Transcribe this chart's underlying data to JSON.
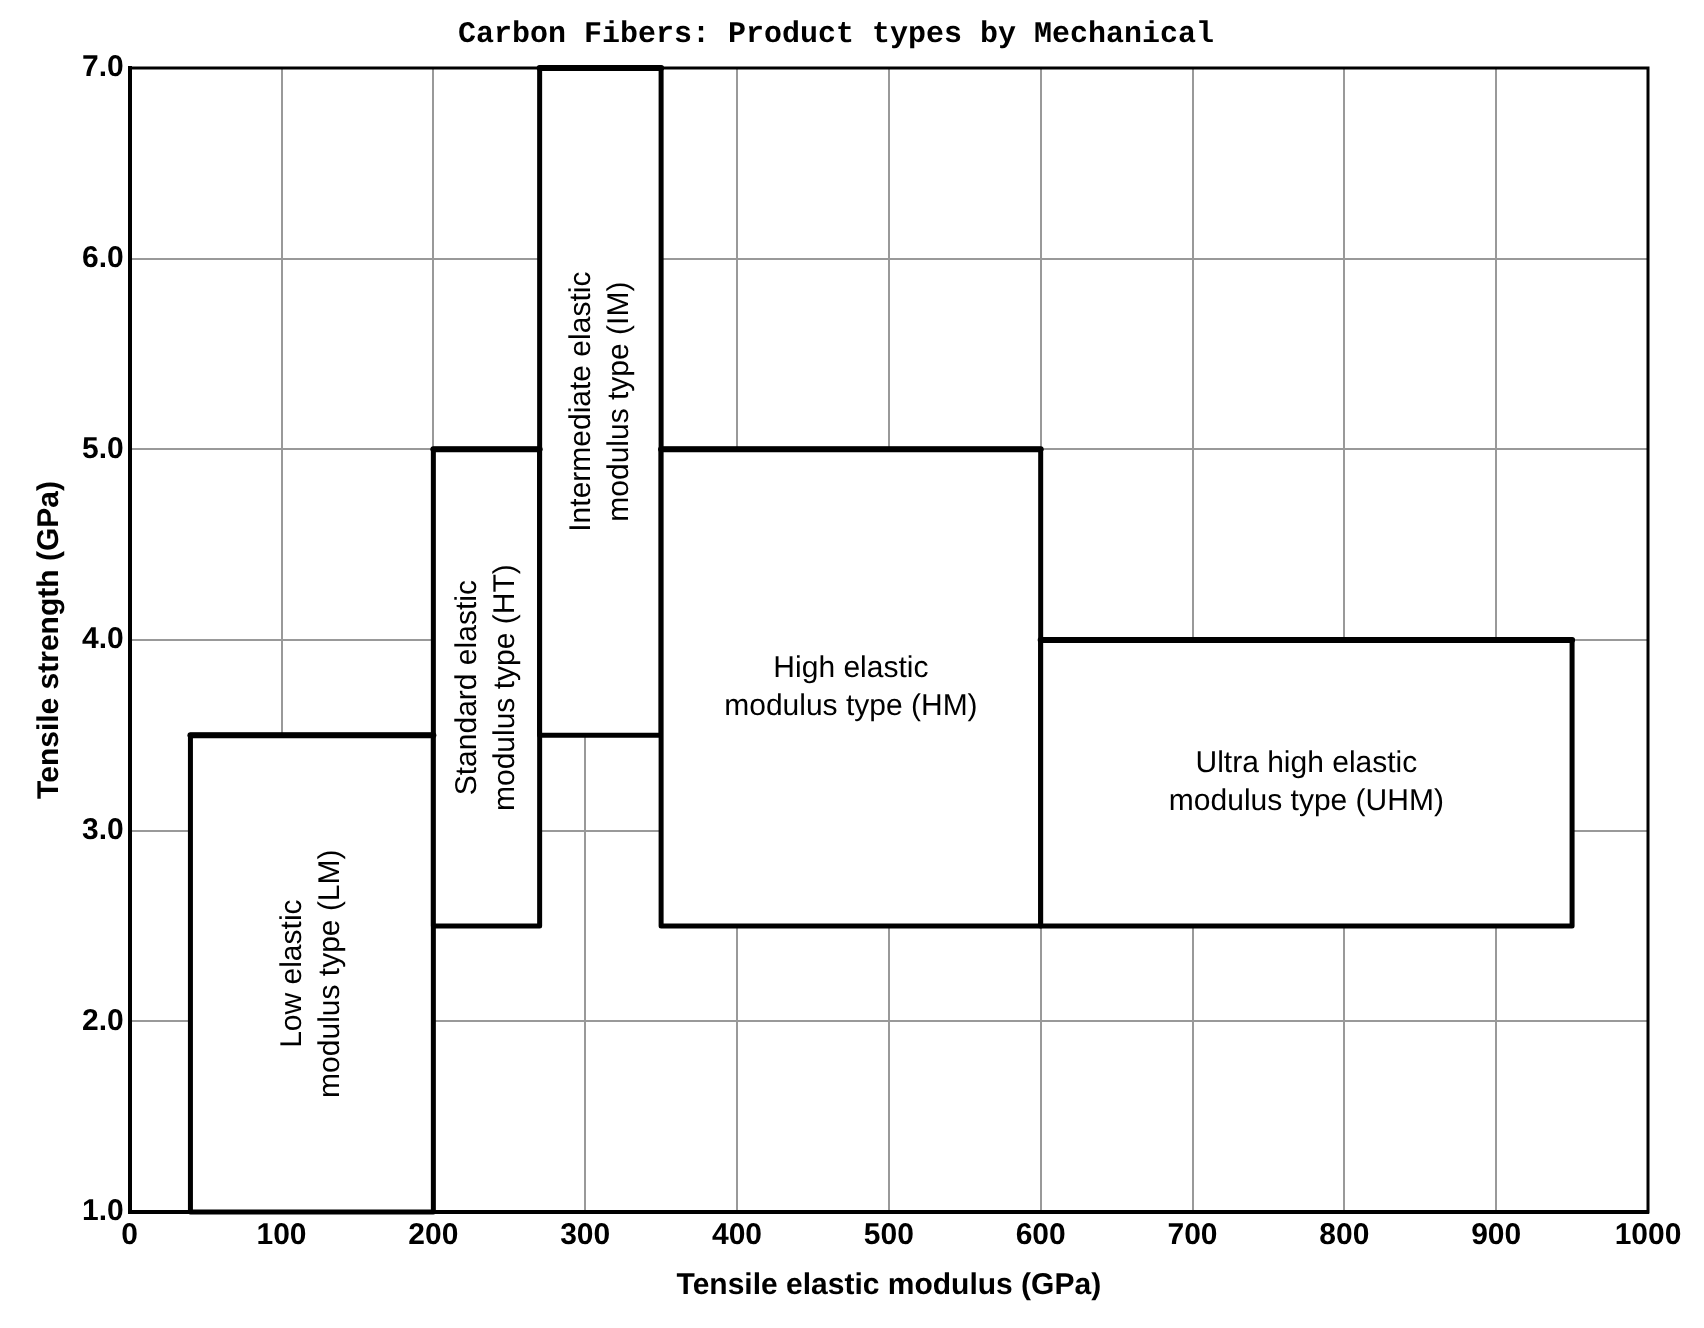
{
  "chart_data": {
    "type": "line",
    "title": "Carbon Fibers: Product types by Mechanical",
    "xlabel": "Tensile elastic modulus (GPa)",
    "ylabel": "Tensile strength (GPa)",
    "series": [
      {
        "color": "#000000",
        "x": [
          40,
          200
        ],
        "values": [
          3.5,
          3.5
        ],
        "lower": [
          1.0,
          1.0
        ],
        "upper": [
          3.5,
          3.5
        ]
      },
      {
        "color": "#000000",
        "x": [
          200,
          270
        ],
        "values": [
          5.0,
          5.0
        ],
        "lower": [
          2.5,
          2.5
        ],
        "upper": [
          5.0,
          5.0
        ]
      },
      {
        "color": "#000000",
        "x": [
          270,
          350
        ],
        "values": [
          7.0,
          7.0
        ],
        "lower": [
          3.5,
          3.5
        ],
        "upper": [
          7.0,
          7.0
        ]
      },
      {
        "color": "#000000",
        "x": [
          350,
          600
        ],
        "values": [
          5.0,
          5.0
        ],
        "lower": [
          2.5,
          2.5
        ],
        "upper": [
          5.0,
          5.0
        ]
      },
      {
        "color": "#000000",
        "x": [
          600,
          950
        ],
        "values": [
          4.0,
          4.0
        ],
        "lower": [
          2.5,
          2.5
        ],
        "upper": [
          4.0,
          4.0
        ]
      }
    ],
    "annotations": [
      "Low elastic modulus type (LM)",
      "Standard elastic modulus type (HT)",
      "Intermediate elastic modulus type (IM)",
      "High elastic modulus type (HM)",
      "Ultra high elastic modulus type (UHM)"
    ],
    "xlim": [
      0,
      1000
    ],
    "xticks": [
      0,
      100,
      200,
      300,
      400,
      500,
      600,
      700,
      800,
      900,
      1000
    ],
    "ylim": [
      1.0,
      7.0
    ],
    "yticks": [
      {
        "value": 1,
        "label": "1.0"
      },
      {
        "value": 2,
        "label": "2.0"
      },
      {
        "value": 3,
        "label": "3.0"
      },
      {
        "value": 4,
        "label": "4.0"
      },
      {
        "value": 5,
        "label": "5.0"
      },
      {
        "value": 6,
        "label": "6.0"
      },
      {
        "value": 7,
        "label": "7.0"
      }
    ],
    "grid": true,
    "legend": false,
    "marker": "none",
    "line_style": "solid"
  }
}
